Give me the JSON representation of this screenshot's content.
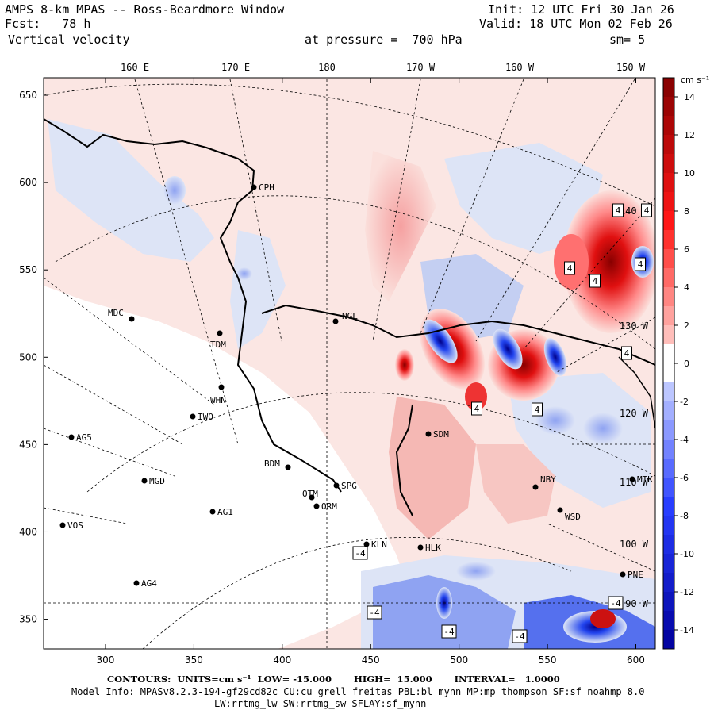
{
  "header": {
    "title": "AMPS 8-km MPAS -- Ross-Beardmore Window",
    "fcst": "Fcst:   78 h",
    "variable": "Vertical velocity",
    "init": "Init: 12 UTC Fri 30 Jan 26",
    "valid": "Valid: 18 UTC Mon 02 Feb 26",
    "pressure": "at pressure =  700 hPa",
    "smoothing": "sm= 5"
  },
  "axes": {
    "x_ticks": [
      "300",
      "350",
      "400",
      "450",
      "500",
      "550",
      "600"
    ],
    "y_ticks": [
      "650",
      "600",
      "550",
      "500",
      "450",
      "400",
      "350"
    ],
    "longitude_labels": [
      "160 E",
      "170 E",
      "180",
      "170 W",
      "160 W",
      "150 W"
    ],
    "right_longitude_labels": [
      "140 W",
      "130 W",
      "120 W",
      "110 W",
      "100 W",
      "90 W"
    ]
  },
  "colorbar": {
    "unit": "cm s⁻¹",
    "labels": [
      "14",
      "12",
      "10",
      "8",
      "6",
      "4",
      "2",
      "0",
      "-2",
      "-4",
      "-6",
      "-8",
      "-10",
      "-12",
      "-14"
    ],
    "min": -15,
    "max": 15,
    "colors": {
      "positive_high": "#990000",
      "positive_mid": "#ff2222",
      "positive_low": "#fbe0dc",
      "neutral": "#ffffff",
      "negative_low": "#dde4f6",
      "negative_mid": "#3355ff",
      "negative_high": "#000099"
    }
  },
  "stations": [
    {
      "name": "CPH"
    },
    {
      "name": "NGL"
    },
    {
      "name": "MDC"
    },
    {
      "name": "TDM"
    },
    {
      "name": "WHN"
    },
    {
      "name": "IWO"
    },
    {
      "name": "AG5"
    },
    {
      "name": "SDM"
    },
    {
      "name": "MGD"
    },
    {
      "name": "BDM"
    },
    {
      "name": "SPG"
    },
    {
      "name": "OTM"
    },
    {
      "name": "ORM"
    },
    {
      "name": "AG1"
    },
    {
      "name": "VOS"
    },
    {
      "name": "KLN"
    },
    {
      "name": "HLK"
    },
    {
      "name": "AG4"
    },
    {
      "name": "NBY"
    },
    {
      "name": "WSD"
    },
    {
      "name": "MTK"
    },
    {
      "name": "PNE"
    }
  ],
  "min_max_labels": [
    "4",
    "4",
    "4",
    "4",
    "4",
    "4",
    "4",
    "4",
    "-4",
    "-4",
    "-4",
    "-4",
    "-4"
  ],
  "footer": {
    "contours": "CONTOURS:  UNITS=cm s⁻¹  LOW= -15.000       HIGH=  15.000       INTERVAL=   1.0000",
    "model_info": "Model Info: MPASv8.2.3-194-gf29cd82c CU:cu_grell_freitas PBL:bl_mynn MP:mp_thompson SF:sf_noahmp 8.0",
    "model_info2": "LW:rrtmg_lw SW:rrtmg_sw SFLAY:sf_mynn"
  }
}
